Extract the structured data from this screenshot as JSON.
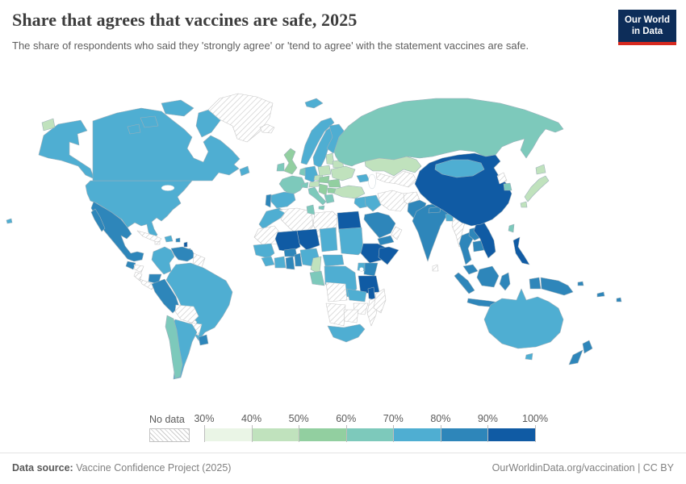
{
  "header": {
    "title": "Share that agrees that vaccines are safe, 2025",
    "subtitle": "The share of respondents who said they 'strongly agree' or 'tend to agree' with the statement vaccines are safe.",
    "logo_line1": "Our World",
    "logo_line2": "in Data"
  },
  "legend": {
    "no_data_label": "No data",
    "ticks": [
      "30%",
      "40%",
      "50%",
      "60%",
      "70%",
      "80%",
      "90%",
      "100%"
    ]
  },
  "colors": {
    "logo_bg": "#0d2d59",
    "logo_red": "#d7291f",
    "country_border": "#9db0ba",
    "no_data_border": "#c8c8c8",
    "bins": [
      {
        "range": "30-40%",
        "hex": "#eaf5e6"
      },
      {
        "range": "40-50%",
        "hex": "#c0e2bd"
      },
      {
        "range": "50-60%",
        "hex": "#92cfa0"
      },
      {
        "range": "60-70%",
        "hex": "#7dc9bb"
      },
      {
        "range": "70-80%",
        "hex": "#4faed2"
      },
      {
        "range": "80-90%",
        "hex": "#2e86ba"
      },
      {
        "range": "90-100%",
        "hex": "#105ba4"
      }
    ]
  },
  "footer": {
    "source_label": "Data source:",
    "source_value": " Vaccine Confidence Project (2025)",
    "attribution": "OurWorldinData.org/vaccination | CC BY"
  },
  "chart_data": {
    "type": "choropleth",
    "title": "Share that agrees that vaccines are safe, 2025",
    "unit": "%",
    "legend_bins": [
      "30-40%",
      "40-50%",
      "50-60%",
      "60-70%",
      "70-80%",
      "80-90%",
      "90-100%",
      "no-data"
    ],
    "regions": {
      "usa": "70-80%",
      "canada": "70-80%",
      "hawaii": "70-80%",
      "wrangel_island": "40-50%",
      "greenland": "no-data",
      "iceland": "no-data",
      "mexico": "80-90%",
      "guatemala": "80-90%",
      "honduras": "no-data",
      "nicaragua": "no-data",
      "costa_panama": "no-data",
      "cuba": "no-data",
      "jamaica": "no-data",
      "hispaniola": "70-80%",
      "puerto_rico": "80-90%",
      "lesser_antilles": "90-100%",
      "trinidad": "90-100%",
      "colombia": "70-80%",
      "venezuela": "80-90%",
      "guyanas": "no-data",
      "ecuador": "80-90%",
      "peru": "80-90%",
      "brazil": "70-80%",
      "bolivia": "no-data",
      "paraguay": "no-data",
      "argentina": "70-80%",
      "chile": "60-70%",
      "uruguay": "80-90%",
      "svalbard": "70-80%",
      "norway": "70-80%",
      "sweden": "70-80%",
      "finland": "70-80%",
      "denmark": "70-80%",
      "uk": "50-60%",
      "ireland": "60-70%",
      "france": "60-70%",
      "spain": "70-80%",
      "portugal": "80-90%",
      "germany": "70-80%",
      "benelux": "60-70%",
      "switzerland": "60-70%",
      "austria": "40-50%",
      "czechia": "40-50%",
      "poland": "40-50%",
      "baltics": "40-50%",
      "belarus": "40-50%",
      "ukraine": "40-50%",
      "hungary_slovakia": "50-60%",
      "romania": "50-60%",
      "balkans": "50-60%",
      "bulgaria": "50-60%",
      "greece": "60-70%",
      "italy": "60-70%",
      "russia": "60-70%",
      "kazakhstan": "40-50%",
      "central_asia": "no-data",
      "caucasus": "70-80%",
      "turkey": "40-50%",
      "syria_levant": "70-80%",
      "iraq": "70-80%",
      "iran": "no-data",
      "afghanistan": "no-data",
      "saudi": "80-90%",
      "yemen": "80-90%",
      "oman": "no-data",
      "pakistan": "80-90%",
      "india": "80-90%",
      "nepal": "80-90%",
      "bangladesh": "70-80%",
      "sri_lanka": "no-data",
      "myanmar": "no-data",
      "thailand": "80-90%",
      "laos": "80-90%",
      "cambodia": "80-90%",
      "vietnam": "90-100%",
      "malaysia": "80-90%",
      "indonesia": "80-90%",
      "png": "80-90%",
      "philippines": "90-100%",
      "taiwan": "60-70%",
      "china": "90-100%",
      "mongolia": "70-80%",
      "north_korea": "no-data",
      "south_korea": "60-70%",
      "japan": "40-50%",
      "morocco": "70-80%",
      "algeria": "no-data",
      "tunisia": "60-70%",
      "libya": "no-data",
      "egypt": "90-100%",
      "w_sahara_mauritania": "no-data",
      "senegal_gambia_guinea": "70-80%",
      "sierra_liberia": "70-80%",
      "mali": "90-100%",
      "burkina": "80-90%",
      "cote": "70-80%",
      "ghana": "80-90%",
      "togo_benin": "80-90%",
      "niger": "90-100%",
      "nigeria": "70-80%",
      "chad": "70-80%",
      "cameroon": "40-50%",
      "car": "70-80%",
      "sudan": "70-80%",
      "ethiopia": "90-100%",
      "somalia": "90-100%",
      "kenya": "80-90%",
      "uganda": "70-80%",
      "gabon_congo": "60-70%",
      "drc": "70-80%",
      "tanzania": "90-100%",
      "malawi": "90-100%",
      "zambia": "70-80%",
      "angola": "no-data",
      "mozambique": "no-data",
      "zimbabwe": "no-data",
      "namibia": "no-data",
      "botswana": "no-data",
      "south_africa": "70-80%",
      "madagascar": "no-data",
      "australia": "70-80%",
      "nz": "80-90%",
      "new_caledonia": "80-90%",
      "fiji": "80-90%"
    }
  }
}
